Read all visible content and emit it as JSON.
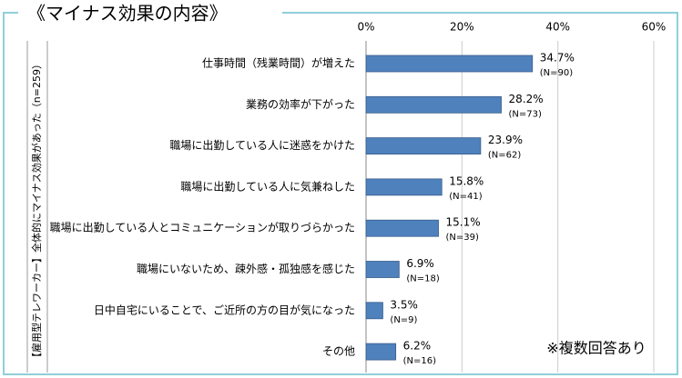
{
  "chart_data": {
    "type": "hbar",
    "title": "《マイナス効果の内容》",
    "y_label": "【雇用型テレワーカー】全体的にマイナス効果があった（n=259）",
    "note": "※複数回答あり",
    "categories": [
      "仕事時間（残業時間）が増えた",
      "業務の効率が下がった",
      "職場に出勤している人に迷惑をかけた",
      "職場に出勤している人に気兼ねした",
      "職場に出勤している人とコミュニケーションが取りづらかった",
      "職場にいないため、疎外感・孤独感を感じた",
      "日中自宅にいることで、ご近所の方の目が気になった",
      "その他"
    ],
    "values": [
      34.7,
      28.2,
      23.9,
      15.8,
      15.1,
      6.9,
      3.5,
      6.2
    ],
    "value_labels": [
      "34.7%",
      "28.2%",
      "23.9%",
      "15.8%",
      "15.1%",
      "6.9%",
      "3.5%",
      "6.2%"
    ],
    "count_labels": [
      "(N=90)",
      "(N=73)",
      "(N=62)",
      "(N=41)",
      "(N=39)",
      "(N=18)",
      "(N=9)",
      "(N=16)"
    ],
    "color": "#4f81bd",
    "xlim": [
      0,
      60
    ],
    "xticks": [
      {
        "value": 0,
        "label": "0%"
      },
      {
        "value": 20,
        "label": "20%"
      },
      {
        "value": 40,
        "label": "40%"
      },
      {
        "value": 60,
        "label": "60%"
      }
    ],
    "grid": true
  }
}
